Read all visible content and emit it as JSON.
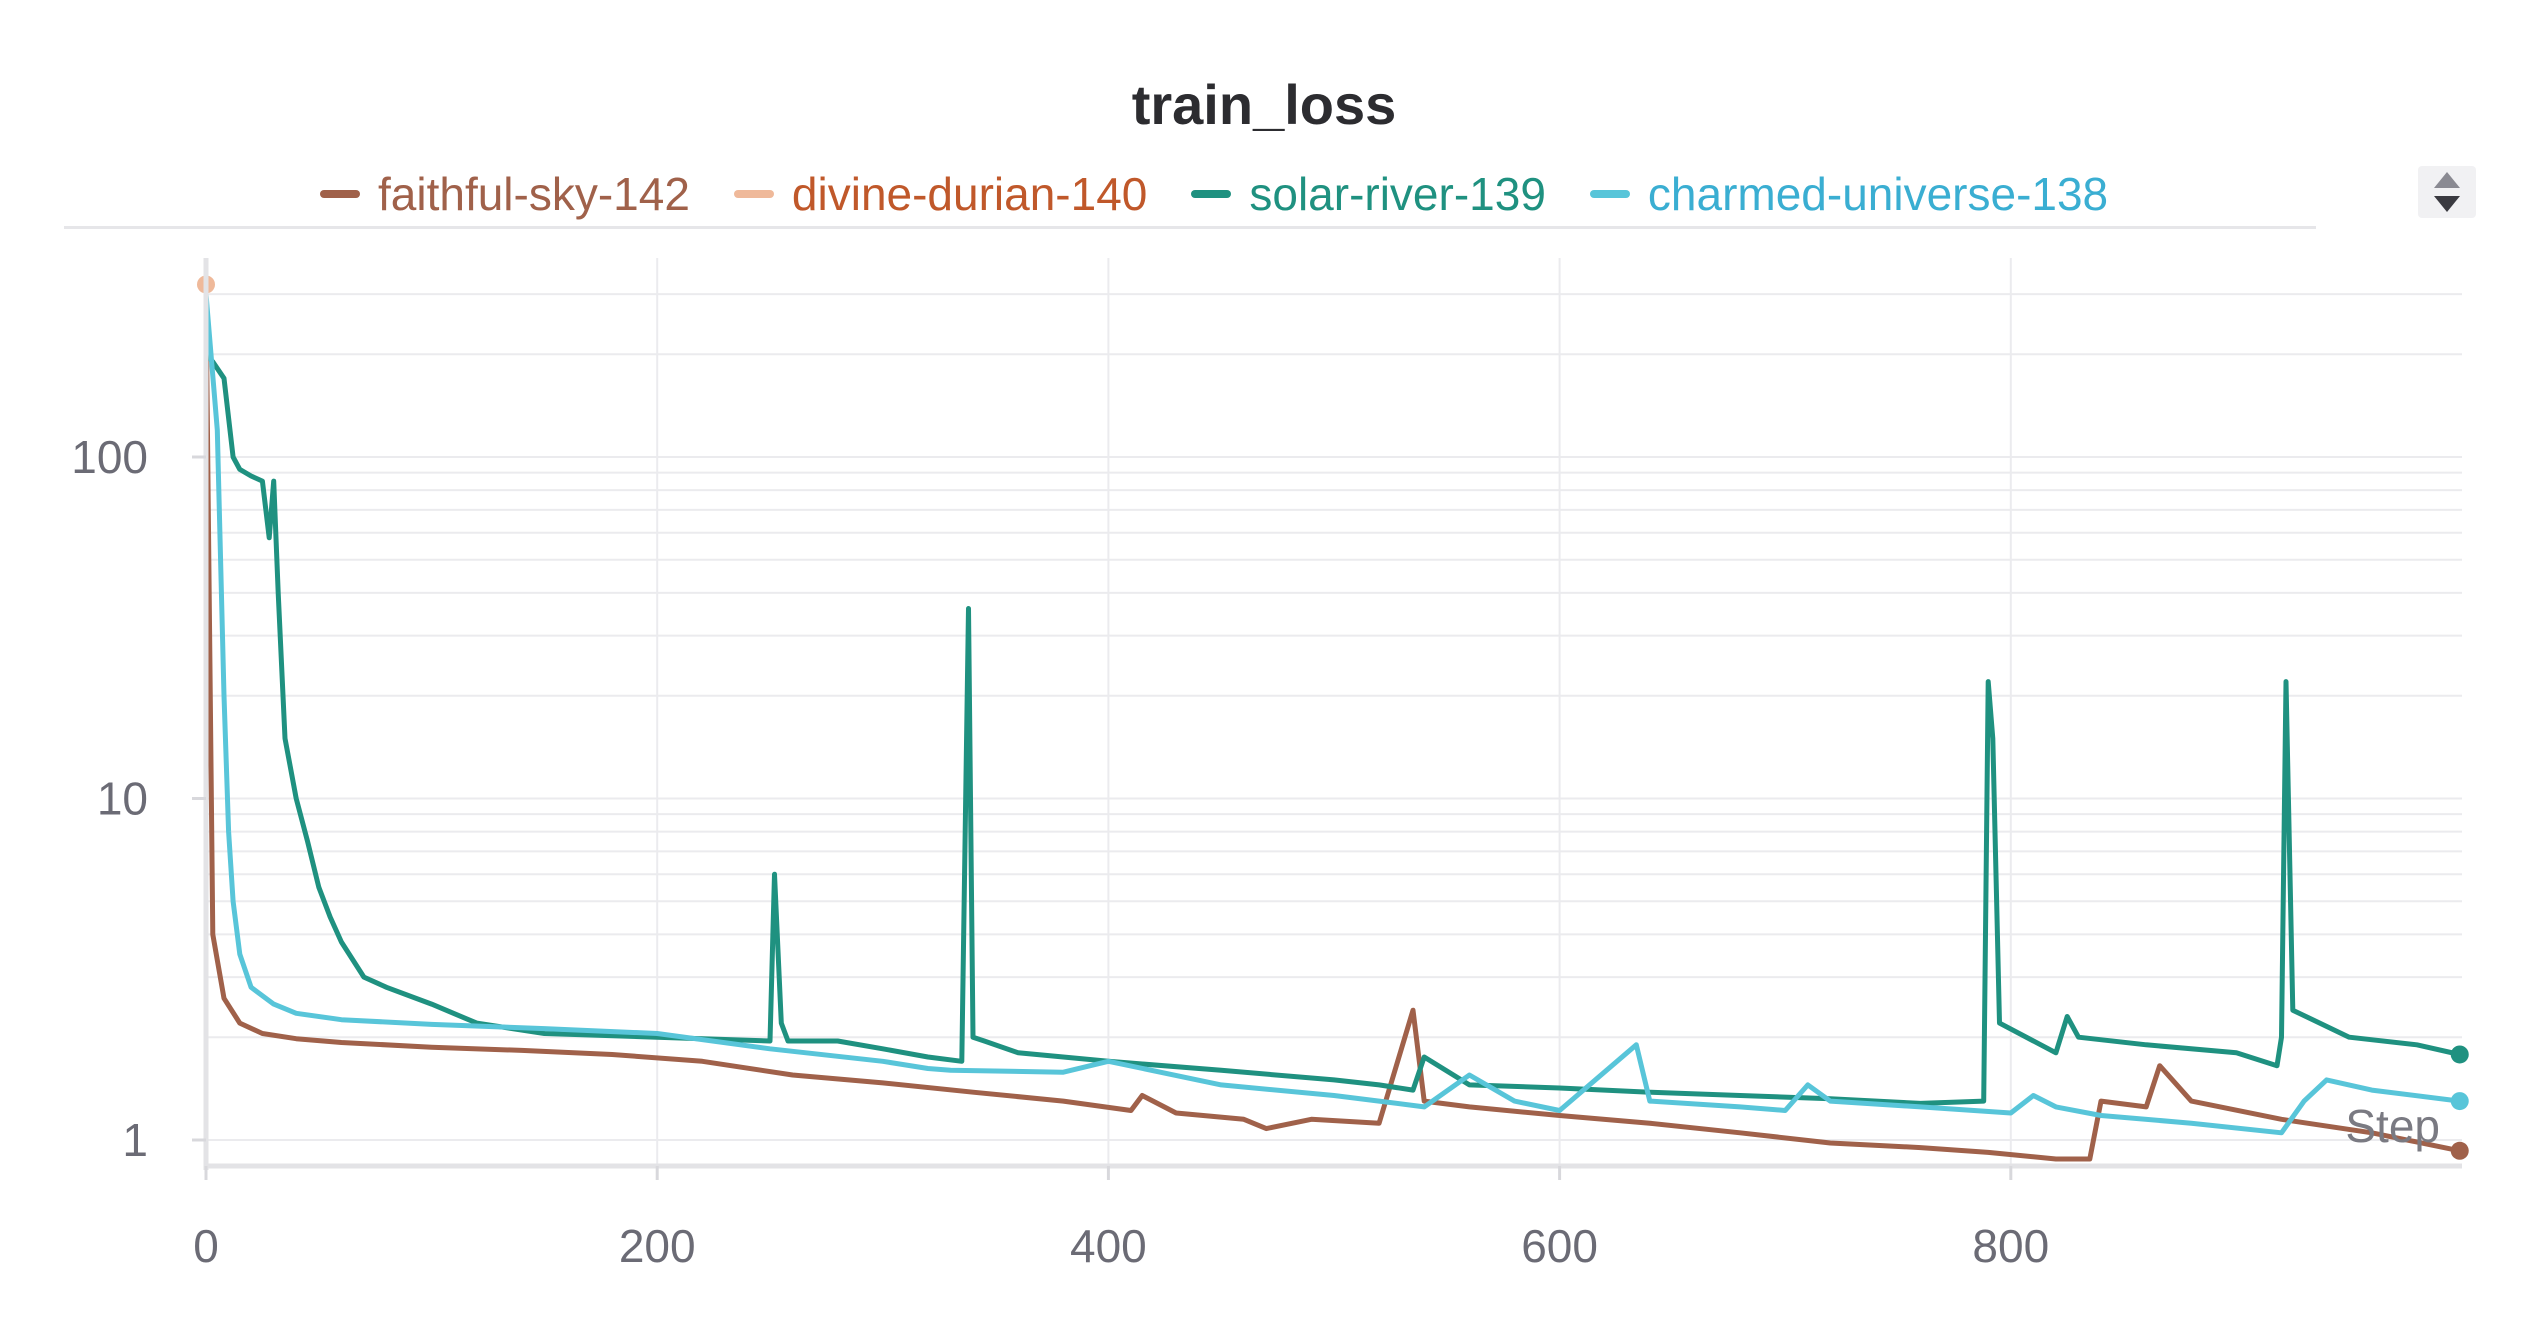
{
  "chart_data": {
    "type": "line",
    "title": "train_loss",
    "xlabel": "Step",
    "ylabel": "",
    "yscale": "log",
    "xlim": [
      0,
      1000
    ],
    "ylim": [
      0.85,
      320
    ],
    "x_ticks": [
      0,
      200,
      400,
      600,
      800
    ],
    "x_tick_labels": [
      "0",
      "200",
      "400",
      "600",
      "800"
    ],
    "y_ticks": [
      1,
      10,
      100
    ],
    "y_tick_labels": [
      "1",
      "10",
      "100"
    ],
    "grid": true,
    "legend_position": "top",
    "series": [
      {
        "name": "faithful-sky-142",
        "color": "#a0614a",
        "x": [
          0,
          3,
          8,
          15,
          25,
          40,
          60,
          100,
          140,
          180,
          220,
          260,
          300,
          340,
          380,
          410,
          415,
          430,
          460,
          470,
          490,
          520,
          535,
          540,
          560,
          600,
          640,
          680,
          720,
          760,
          790,
          820,
          835,
          840,
          860,
          866,
          880,
          920,
          960,
          999
        ],
        "y": [
          300,
          4.0,
          2.6,
          2.2,
          2.05,
          1.98,
          1.93,
          1.87,
          1.83,
          1.78,
          1.7,
          1.55,
          1.47,
          1.38,
          1.3,
          1.22,
          1.35,
          1.2,
          1.15,
          1.08,
          1.15,
          1.12,
          2.4,
          1.3,
          1.25,
          1.18,
          1.12,
          1.05,
          0.98,
          0.95,
          0.92,
          0.88,
          0.88,
          1.3,
          1.25,
          1.65,
          1.3,
          1.15,
          1.05,
          0.93
        ]
      },
      {
        "name": "divine-durian-140",
        "color": "#efb99a",
        "x": [
          0
        ],
        "y": [
          320
        ]
      },
      {
        "name": "solar-river-139",
        "color": "#1f9180",
        "x": [
          0,
          3,
          8,
          12,
          15,
          20,
          25,
          28,
          30,
          32,
          35,
          40,
          45,
          50,
          55,
          60,
          70,
          80,
          100,
          120,
          150,
          200,
          250,
          252,
          255,
          258,
          280,
          300,
          320,
          335,
          338,
          340,
          345,
          360,
          400,
          450,
          500,
          520,
          535,
          540,
          560,
          600,
          640,
          680,
          720,
          760,
          788,
          790,
          792,
          795,
          820,
          825,
          830,
          860,
          900,
          918,
          920,
          922,
          925,
          950,
          980,
          999
        ],
        "y": [
          200,
          190,
          170,
          100,
          92,
          88,
          85,
          58,
          85,
          40,
          15,
          10,
          7.5,
          5.5,
          4.5,
          3.8,
          3.0,
          2.8,
          2.5,
          2.2,
          2.05,
          2.0,
          1.95,
          6.0,
          2.2,
          1.95,
          1.95,
          1.85,
          1.75,
          1.7,
          36,
          2.0,
          1.95,
          1.8,
          1.7,
          1.6,
          1.5,
          1.45,
          1.4,
          1.75,
          1.45,
          1.42,
          1.38,
          1.35,
          1.32,
          1.28,
          1.3,
          22,
          15,
          2.2,
          1.8,
          2.3,
          2.0,
          1.9,
          1.8,
          1.65,
          2.0,
          22,
          2.4,
          2.0,
          1.9,
          1.78
        ]
      },
      {
        "name": "charmed-universe-138",
        "color": "#58c5d9",
        "x": [
          0,
          5,
          8,
          10,
          12,
          15,
          20,
          30,
          40,
          60,
          100,
          150,
          200,
          250,
          300,
          320,
          330,
          380,
          400,
          450,
          500,
          520,
          540,
          560,
          580,
          600,
          634,
          640,
          680,
          700,
          710,
          720,
          760,
          800,
          810,
          820,
          840,
          880,
          920,
          930,
          940,
          960,
          999
        ],
        "y": [
          300,
          120,
          20,
          8,
          5,
          3.5,
          2.8,
          2.5,
          2.35,
          2.25,
          2.18,
          2.12,
          2.05,
          1.85,
          1.7,
          1.62,
          1.6,
          1.58,
          1.7,
          1.45,
          1.35,
          1.3,
          1.25,
          1.55,
          1.3,
          1.22,
          1.9,
          1.3,
          1.25,
          1.22,
          1.45,
          1.3,
          1.25,
          1.2,
          1.35,
          1.25,
          1.18,
          1.12,
          1.05,
          1.3,
          1.5,
          1.4,
          1.3
        ]
      }
    ]
  }
}
